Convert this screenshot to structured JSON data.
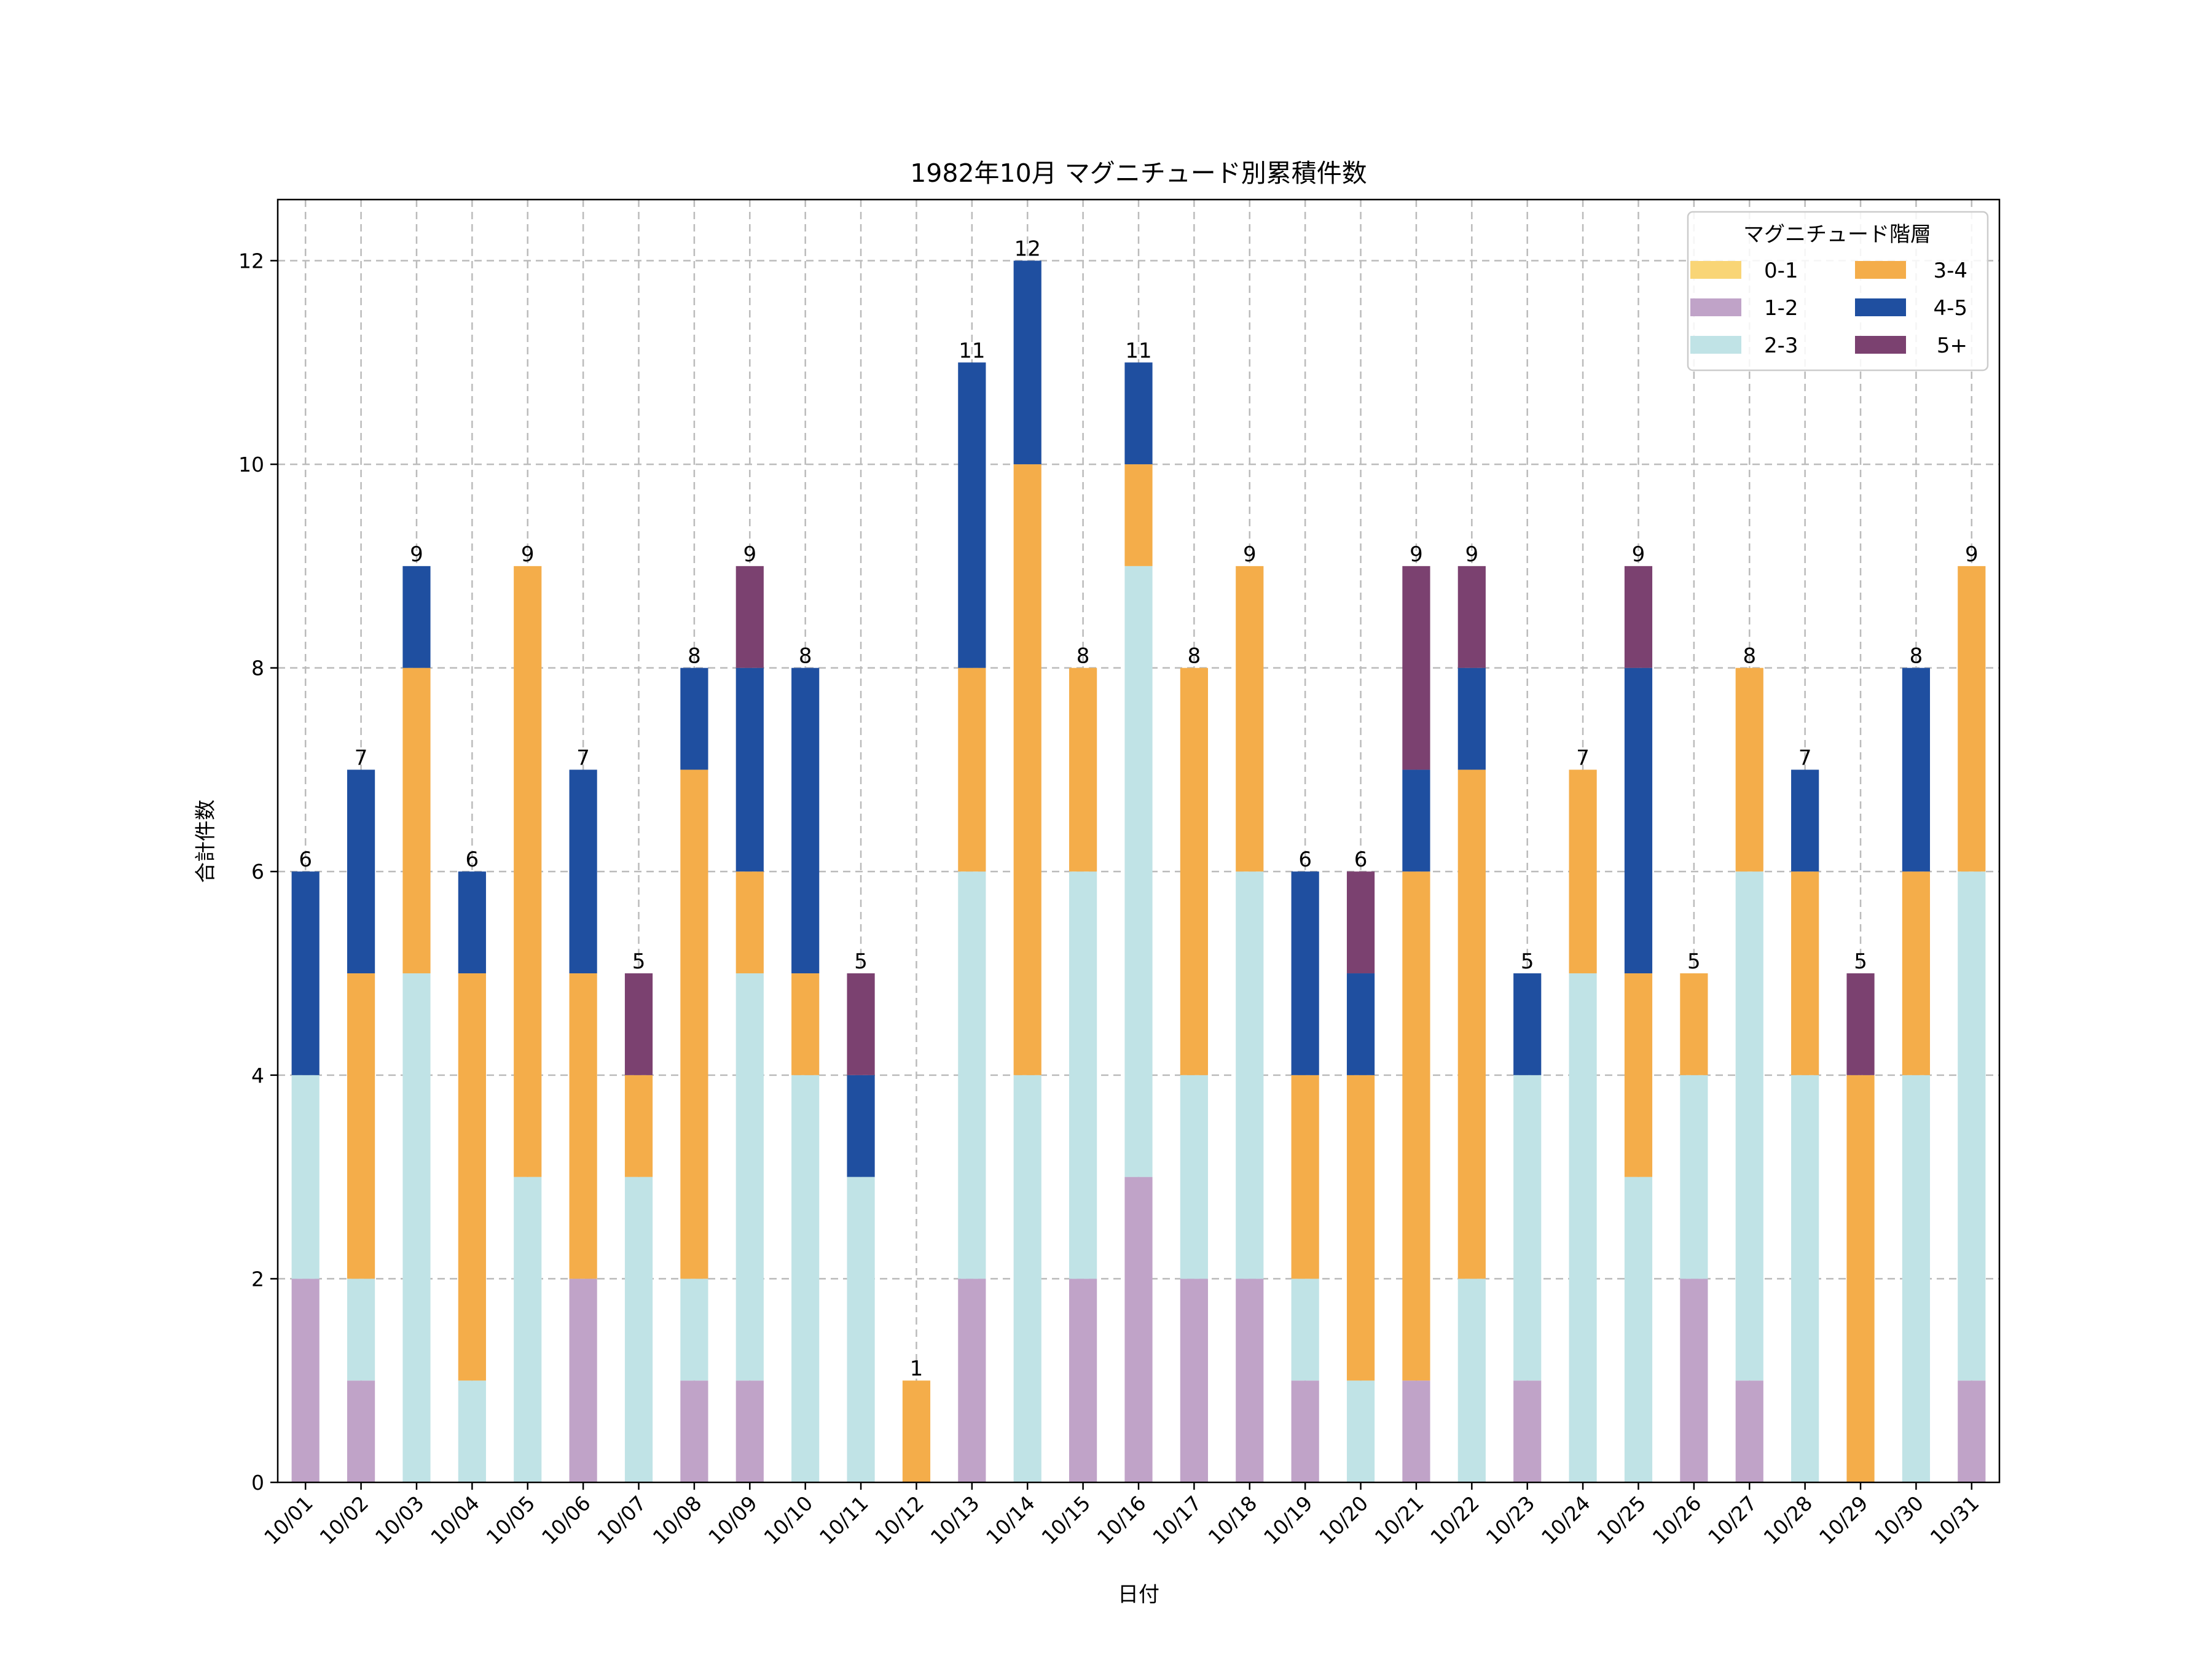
{
  "chart_data": {
    "type": "bar",
    "stacked": true,
    "title": "1982年10月 マグニチュード別累積件数",
    "xlabel": "日付",
    "ylabel": "合計件数",
    "ylim": [
      0,
      12.6
    ],
    "yticks": [
      0,
      2,
      4,
      6,
      8,
      10,
      12
    ],
    "grid": true,
    "legend": {
      "title": "マグニチュード階層",
      "placement": "top-right",
      "columns": 2
    },
    "categories": [
      "10/01",
      "10/02",
      "10/03",
      "10/04",
      "10/05",
      "10/06",
      "10/07",
      "10/08",
      "10/09",
      "10/10",
      "10/11",
      "10/12",
      "10/13",
      "10/14",
      "10/15",
      "10/16",
      "10/17",
      "10/18",
      "10/19",
      "10/20",
      "10/21",
      "10/22",
      "10/23",
      "10/24",
      "10/25",
      "10/26",
      "10/27",
      "10/28",
      "10/29",
      "10/30",
      "10/31"
    ],
    "series": [
      {
        "name": "0-1",
        "color": "#f9d576",
        "values": [
          0,
          0,
          0,
          0,
          0,
          0,
          0,
          0,
          0,
          0,
          0,
          0,
          0,
          0,
          0,
          0,
          0,
          0,
          0,
          0,
          0,
          0,
          0,
          0,
          0,
          0,
          0,
          0,
          0,
          0,
          0
        ]
      },
      {
        "name": "1-2",
        "color": "#c0a3c8",
        "values": [
          2,
          1,
          0,
          0,
          0,
          2,
          0,
          1,
          1,
          0,
          0,
          0,
          2,
          0,
          2,
          3,
          2,
          2,
          1,
          0,
          1,
          0,
          1,
          0,
          0,
          2,
          1,
          0,
          0,
          0,
          1
        ]
      },
      {
        "name": "2-3",
        "color": "#c0e3e6",
        "values": [
          2,
          1,
          5,
          1,
          3,
          0,
          3,
          1,
          4,
          4,
          3,
          0,
          4,
          4,
          4,
          6,
          2,
          4,
          1,
          1,
          0,
          2,
          3,
          5,
          3,
          2,
          5,
          4,
          0,
          4,
          5
        ]
      },
      {
        "name": "3-4",
        "color": "#f4ad4a",
        "values": [
          0,
          3,
          3,
          4,
          6,
          3,
          1,
          5,
          1,
          1,
          0,
          1,
          2,
          6,
          2,
          1,
          4,
          3,
          2,
          3,
          5,
          5,
          0,
          2,
          2,
          1,
          2,
          2,
          4,
          2,
          3
        ]
      },
      {
        "name": "4-5",
        "color": "#1f4fa0",
        "values": [
          2,
          2,
          1,
          1,
          0,
          2,
          0,
          1,
          2,
          3,
          1,
          0,
          3,
          2,
          0,
          1,
          0,
          0,
          2,
          1,
          1,
          1,
          1,
          0,
          3,
          0,
          0,
          1,
          0,
          2,
          0
        ]
      },
      {
        "name": "5+",
        "color": "#7b4170",
        "values": [
          0,
          0,
          0,
          0,
          0,
          0,
          1,
          0,
          1,
          0,
          1,
          0,
          0,
          0,
          0,
          0,
          0,
          0,
          0,
          1,
          2,
          1,
          0,
          0,
          1,
          0,
          0,
          0,
          1,
          0,
          0
        ]
      }
    ],
    "totals": [
      6,
      7,
      9,
      6,
      9,
      7,
      5,
      8,
      9,
      8,
      5,
      1,
      11,
      12,
      8,
      11,
      8,
      9,
      6,
      6,
      9,
      9,
      5,
      7,
      9,
      5,
      8,
      7,
      5,
      8,
      9
    ]
  }
}
